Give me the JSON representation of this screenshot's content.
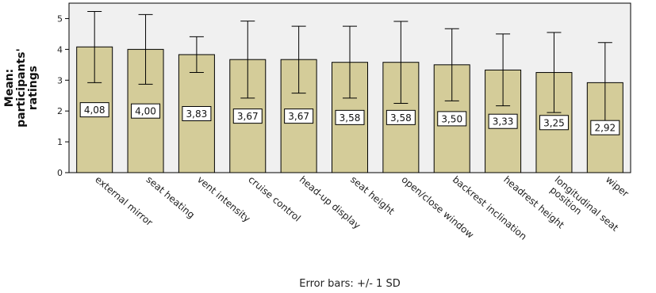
{
  "chart_data": {
    "type": "bar",
    "title": "",
    "ylabel": [
      "Mean:",
      "participants'",
      "ratings"
    ],
    "ylim": [
      0,
      5.5
    ],
    "yticks": [
      0,
      1,
      2,
      3,
      4,
      5
    ],
    "grid": false,
    "bar_color": "#d4cc99",
    "plot_bg": "#f0f0f0",
    "footnote": "Error bars: +/- 1 SD",
    "categories": [
      "external mirror",
      "seat heating",
      "vent intensity",
      "cruise control",
      "head-up display",
      "seat height",
      "open/close window",
      "backrest inclination",
      "headrest height",
      [
        "longitudinal seat",
        "position"
      ],
      "wiper"
    ],
    "values": [
      4.08,
      4.0,
      3.83,
      3.67,
      3.67,
      3.58,
      3.58,
      3.5,
      3.33,
      3.25,
      2.92
    ],
    "value_labels": [
      "4,08",
      "4,00",
      "3,83",
      "3,67",
      "3,67",
      "3,58",
      "3,58",
      "3,50",
      "3,33",
      "3,25",
      "2,92"
    ],
    "error_low": [
      2.92,
      2.87,
      3.25,
      2.42,
      2.58,
      2.42,
      2.25,
      2.33,
      2.17,
      1.95,
      1.62
    ],
    "error_high": [
      5.23,
      5.13,
      4.41,
      4.92,
      4.75,
      4.75,
      4.91,
      4.67,
      4.5,
      4.55,
      4.22
    ]
  }
}
